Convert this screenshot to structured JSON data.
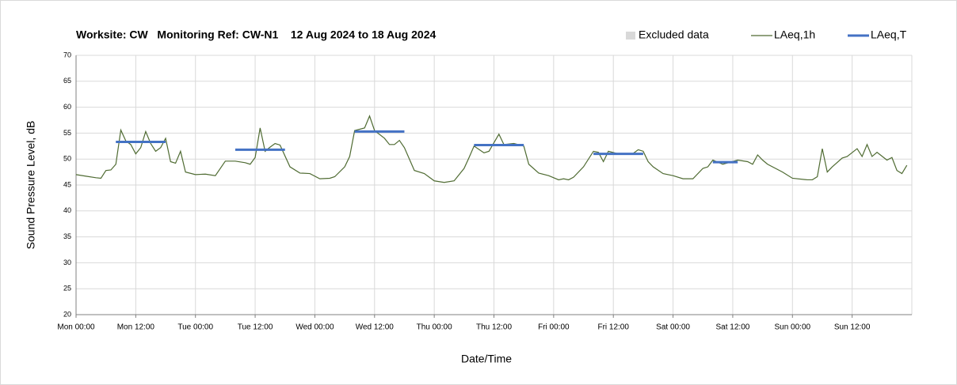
{
  "chart_data": {
    "type": "line",
    "title": "Worksite: CW   Monitoring Ref: CW-N1    12 Aug 2024 to 18 Aug 2024",
    "xlabel": "Date/Time",
    "ylabel": "Sound Pressure Level, dB",
    "xlim": [
      0,
      168
    ],
    "ylim": [
      20,
      70
    ],
    "xticks": [
      {
        "value": 0,
        "label": "Mon 00:00"
      },
      {
        "value": 12,
        "label": "Mon 12:00"
      },
      {
        "value": 24,
        "label": "Tue 00:00"
      },
      {
        "value": 36,
        "label": "Tue 12:00"
      },
      {
        "value": 48,
        "label": "Wed 00:00"
      },
      {
        "value": 60,
        "label": "Wed 12:00"
      },
      {
        "value": 72,
        "label": "Thu 00:00"
      },
      {
        "value": 84,
        "label": "Thu 12:00"
      },
      {
        "value": 96,
        "label": "Fri 00:00"
      },
      {
        "value": 108,
        "label": "Fri 12:00"
      },
      {
        "value": 120,
        "label": "Sat 00:00"
      },
      {
        "value": 132,
        "label": "Sat 12:00"
      },
      {
        "value": 144,
        "label": "Sun 00:00"
      },
      {
        "value": 156,
        "label": "Sun 12:00"
      }
    ],
    "yticks": [
      20,
      25,
      30,
      35,
      40,
      45,
      50,
      55,
      60,
      65,
      70
    ],
    "grid": true,
    "series": [
      {
        "name": "Excluded data",
        "color": "#d9d9d9",
        "values": []
      },
      {
        "name": "LAeq,1h",
        "color": "#4f6b32",
        "x": [
          0,
          2,
          4,
          5,
          6,
          7,
          8,
          9,
          10,
          11,
          12,
          13,
          14,
          15,
          16,
          17,
          18,
          19,
          20,
          21,
          22,
          24,
          26,
          28,
          30,
          32,
          34,
          35,
          36,
          37,
          38,
          39,
          40,
          41,
          43,
          45,
          47,
          49,
          51,
          52,
          54,
          55,
          56,
          58,
          59,
          60,
          62,
          63,
          64,
          65,
          66,
          68,
          70,
          72,
          74,
          76,
          78,
          79,
          80,
          82,
          83,
          85,
          86,
          88,
          90,
          91,
          93,
          95,
          97,
          98,
          99,
          100,
          102,
          104,
          105,
          106,
          107,
          109,
          112,
          113,
          114,
          115,
          116,
          118,
          120,
          122,
          124,
          126,
          127,
          128,
          130,
          133,
          135,
          136,
          137,
          138,
          139,
          142,
          144,
          147,
          148,
          149,
          150,
          151,
          152,
          154,
          155,
          157,
          158,
          159,
          160,
          161,
          163,
          164,
          165,
          166,
          167
        ],
        "values": [
          47.0,
          46.7,
          46.4,
          46.3,
          47.8,
          47.9,
          49,
          55.6,
          53.5,
          52.8,
          51,
          52.2,
          55.3,
          53,
          51.5,
          52.2,
          54,
          49.5,
          49.2,
          51.5,
          47.5,
          47,
          47.1,
          46.8,
          49.6,
          49.6,
          49.3,
          49,
          50.3,
          56,
          51.5,
          52.3,
          53,
          52.7,
          48.5,
          47.3,
          47.2,
          46.2,
          46.3,
          46.6,
          48.5,
          50.5,
          55.5,
          56,
          58.3,
          55.5,
          54,
          52.8,
          52.8,
          53.6,
          52.2,
          47.8,
          47.2,
          45.8,
          45.5,
          45.8,
          48.2,
          50.3,
          52.5,
          51.2,
          51.5,
          54.8,
          52.8,
          53,
          52.5,
          49,
          47.3,
          46.8,
          46,
          46.2,
          46,
          46.5,
          48.5,
          51.5,
          51.3,
          49.5,
          51.5,
          51,
          51.1,
          51.8,
          51.5,
          49.5,
          48.5,
          47.2,
          46.8,
          46.2,
          46.2,
          48.2,
          48.5,
          49.8,
          49,
          49.8,
          49.5,
          49,
          50.8,
          49.8,
          49,
          47.5,
          46.3,
          46,
          46,
          46.6,
          52,
          47.5,
          48.5,
          50.2,
          50.5,
          52,
          50.5,
          52.8,
          50.5,
          51.3,
          49.8,
          50.3,
          47.8,
          47.2,
          48.8
        ]
      },
      {
        "name": "LAeq,T",
        "color": "#4472c4",
        "x_start": [
          8,
          32,
          56,
          80,
          104,
          128
        ],
        "x_end": [
          18,
          42,
          66,
          90,
          114,
          133
        ],
        "values": [
          53.3,
          51.8,
          55.3,
          52.7,
          51.0,
          49.4
        ]
      }
    ]
  }
}
